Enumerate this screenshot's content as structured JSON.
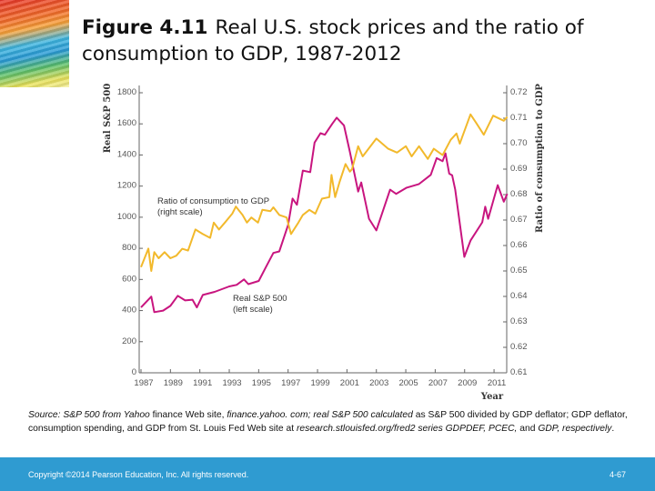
{
  "header": {
    "figure_label": "Figure 4.11",
    "title": "Real U.S. stock prices and the ratio of consumption to GDP, 1987-2012"
  },
  "chart_data": {
    "type": "line",
    "title": "",
    "xlabel": "Year",
    "ylabel_left": "Real S&P 500",
    "ylabel_right": "Ratio of consumption to GDP",
    "xlim": [
      1987,
      2012
    ],
    "ylim_left": [
      0,
      1800
    ],
    "ylim_right": [
      0.61,
      0.72
    ],
    "x_ticks": [
      "1987",
      "1989",
      "1991",
      "1993",
      "1995",
      "1997",
      "1999",
      "2001",
      "2003",
      "2005",
      "2007",
      "2009",
      "2011"
    ],
    "y_ticks_left": [
      "0",
      "200",
      "400",
      "600",
      "800",
      "1000",
      "1200",
      "1400",
      "1600",
      "1800"
    ],
    "y_ticks_right": [
      "0.61",
      "0.62",
      "0.63",
      "0.64",
      "0.65",
      "0.66",
      "0.67",
      "0.68",
      "0.69",
      "0.70",
      "0.71",
      "0.72"
    ],
    "grid": false,
    "legend": "inline annotations",
    "series": [
      {
        "name": "Real S&P 500",
        "annotation": [
          "Real S&P 500",
          "(left scale)"
        ],
        "axis": "left",
        "color": "#c8157f",
        "x": [
          1987.0,
          1987.7,
          1987.9,
          1988.5,
          1989.0,
          1989.5,
          1990.0,
          1990.5,
          1990.8,
          1991.2,
          1992.0,
          1993.0,
          1993.5,
          1994.0,
          1994.3,
          1995.0,
          1995.5,
          1996.0,
          1996.4,
          1997.0,
          1997.3,
          1997.6,
          1998.0,
          1998.5,
          1998.8,
          1999.2,
          1999.5,
          2000.0,
          2000.3,
          2000.8,
          2001.2,
          2001.76,
          2001.97,
          2002.5,
          2003.0,
          2003.93,
          2004.34,
          2005.06,
          2005.9,
          2006.7,
          2007.1,
          2007.5,
          2007.7,
          2007.95,
          2008.15,
          2008.36,
          2008.98,
          2009.4,
          2010.2,
          2010.4,
          2010.6,
          2011.25,
          2011.66,
          2011.9
        ],
        "y": [
          420,
          490,
          390,
          400,
          430,
          495,
          465,
          470,
          420,
          500,
          520,
          555,
          565,
          600,
          570,
          590,
          680,
          770,
          780,
          950,
          1120,
          1080,
          1300,
          1290,
          1480,
          1540,
          1530,
          1600,
          1640,
          1590,
          1420,
          1165,
          1223,
          990,
          915,
          1177,
          1150,
          1190,
          1213,
          1272,
          1380,
          1360,
          1410,
          1280,
          1270,
          1177,
          745,
          850,
          967,
          1068,
          990,
          1206,
          1100,
          1150
        ]
      },
      {
        "name": "Ratio of consumption to GDP",
        "annotation": [
          "Ratio of consumption to GDP",
          "(right scale)"
        ],
        "axis": "right",
        "color": "#f2b92c",
        "x": [
          1987.0,
          1987.5,
          1987.7,
          1987.9,
          1988.2,
          1988.6,
          1989.0,
          1989.4,
          1989.8,
          1990.2,
          1990.7,
          1991.2,
          1991.7,
          1991.95,
          1992.3,
          1992.7,
          1993.2,
          1993.45,
          1993.9,
          1994.2,
          1994.5,
          1994.95,
          1995.25,
          1995.8,
          1996.0,
          1996.4,
          1996.9,
          1997.2,
          1997.7,
          1998.0,
          1998.45,
          1998.85,
          1999.3,
          1999.8,
          1999.95,
          2000.2,
          2000.5,
          2000.9,
          2001.2,
          2001.35,
          2001.76,
          2002.07,
          2003.0,
          2003.8,
          2004.4,
          2005.0,
          2005.4,
          2005.9,
          2006.5,
          2006.9,
          2007.5,
          2008.05,
          2008.45,
          2008.67,
          2009.4,
          2009.8,
          2010.3,
          2010.94,
          2011.66,
          2011.9
        ],
        "y": [
          0.6515,
          0.6588,
          0.65,
          0.6574,
          0.655,
          0.6574,
          0.655,
          0.656,
          0.6587,
          0.658,
          0.6663,
          0.6645,
          0.663,
          0.669,
          0.6663,
          0.669,
          0.6725,
          0.6753,
          0.672,
          0.669,
          0.671,
          0.669,
          0.674,
          0.6735,
          0.675,
          0.672,
          0.671,
          0.6645,
          0.669,
          0.672,
          0.674,
          0.6725,
          0.6784,
          0.679,
          0.6877,
          0.679,
          0.685,
          0.692,
          0.689,
          0.69,
          0.699,
          0.695,
          0.702,
          0.698,
          0.6965,
          0.699,
          0.695,
          0.699,
          0.694,
          0.698,
          0.6955,
          0.7015,
          0.704,
          0.7,
          0.7115,
          0.708,
          0.7035,
          0.711,
          0.709,
          0.7105
        ]
      }
    ]
  },
  "source": {
    "label": "Source:",
    "part1": "S&P 500 from Yahoo",
    "part2": " finance Web site, ",
    "part3": "finance.yahoo. com; real S&P 500 calculated",
    "part4": " as S&P 500 divided by GDP deflator; GDP deflator, consumption spending, and GDP from St. Louis Fed Web site at ",
    "part5": "research.stlouisfed.org/fred2 series GDPDEF, PCEC,",
    "part6": " and ",
    "part7": "GDP, respectively",
    "part8": "."
  },
  "footer": {
    "copyright": "Copyright ©2014 Pearson Education, Inc. All rights reserved.",
    "page_number": "4-67",
    "color": "#2f9bd1"
  }
}
